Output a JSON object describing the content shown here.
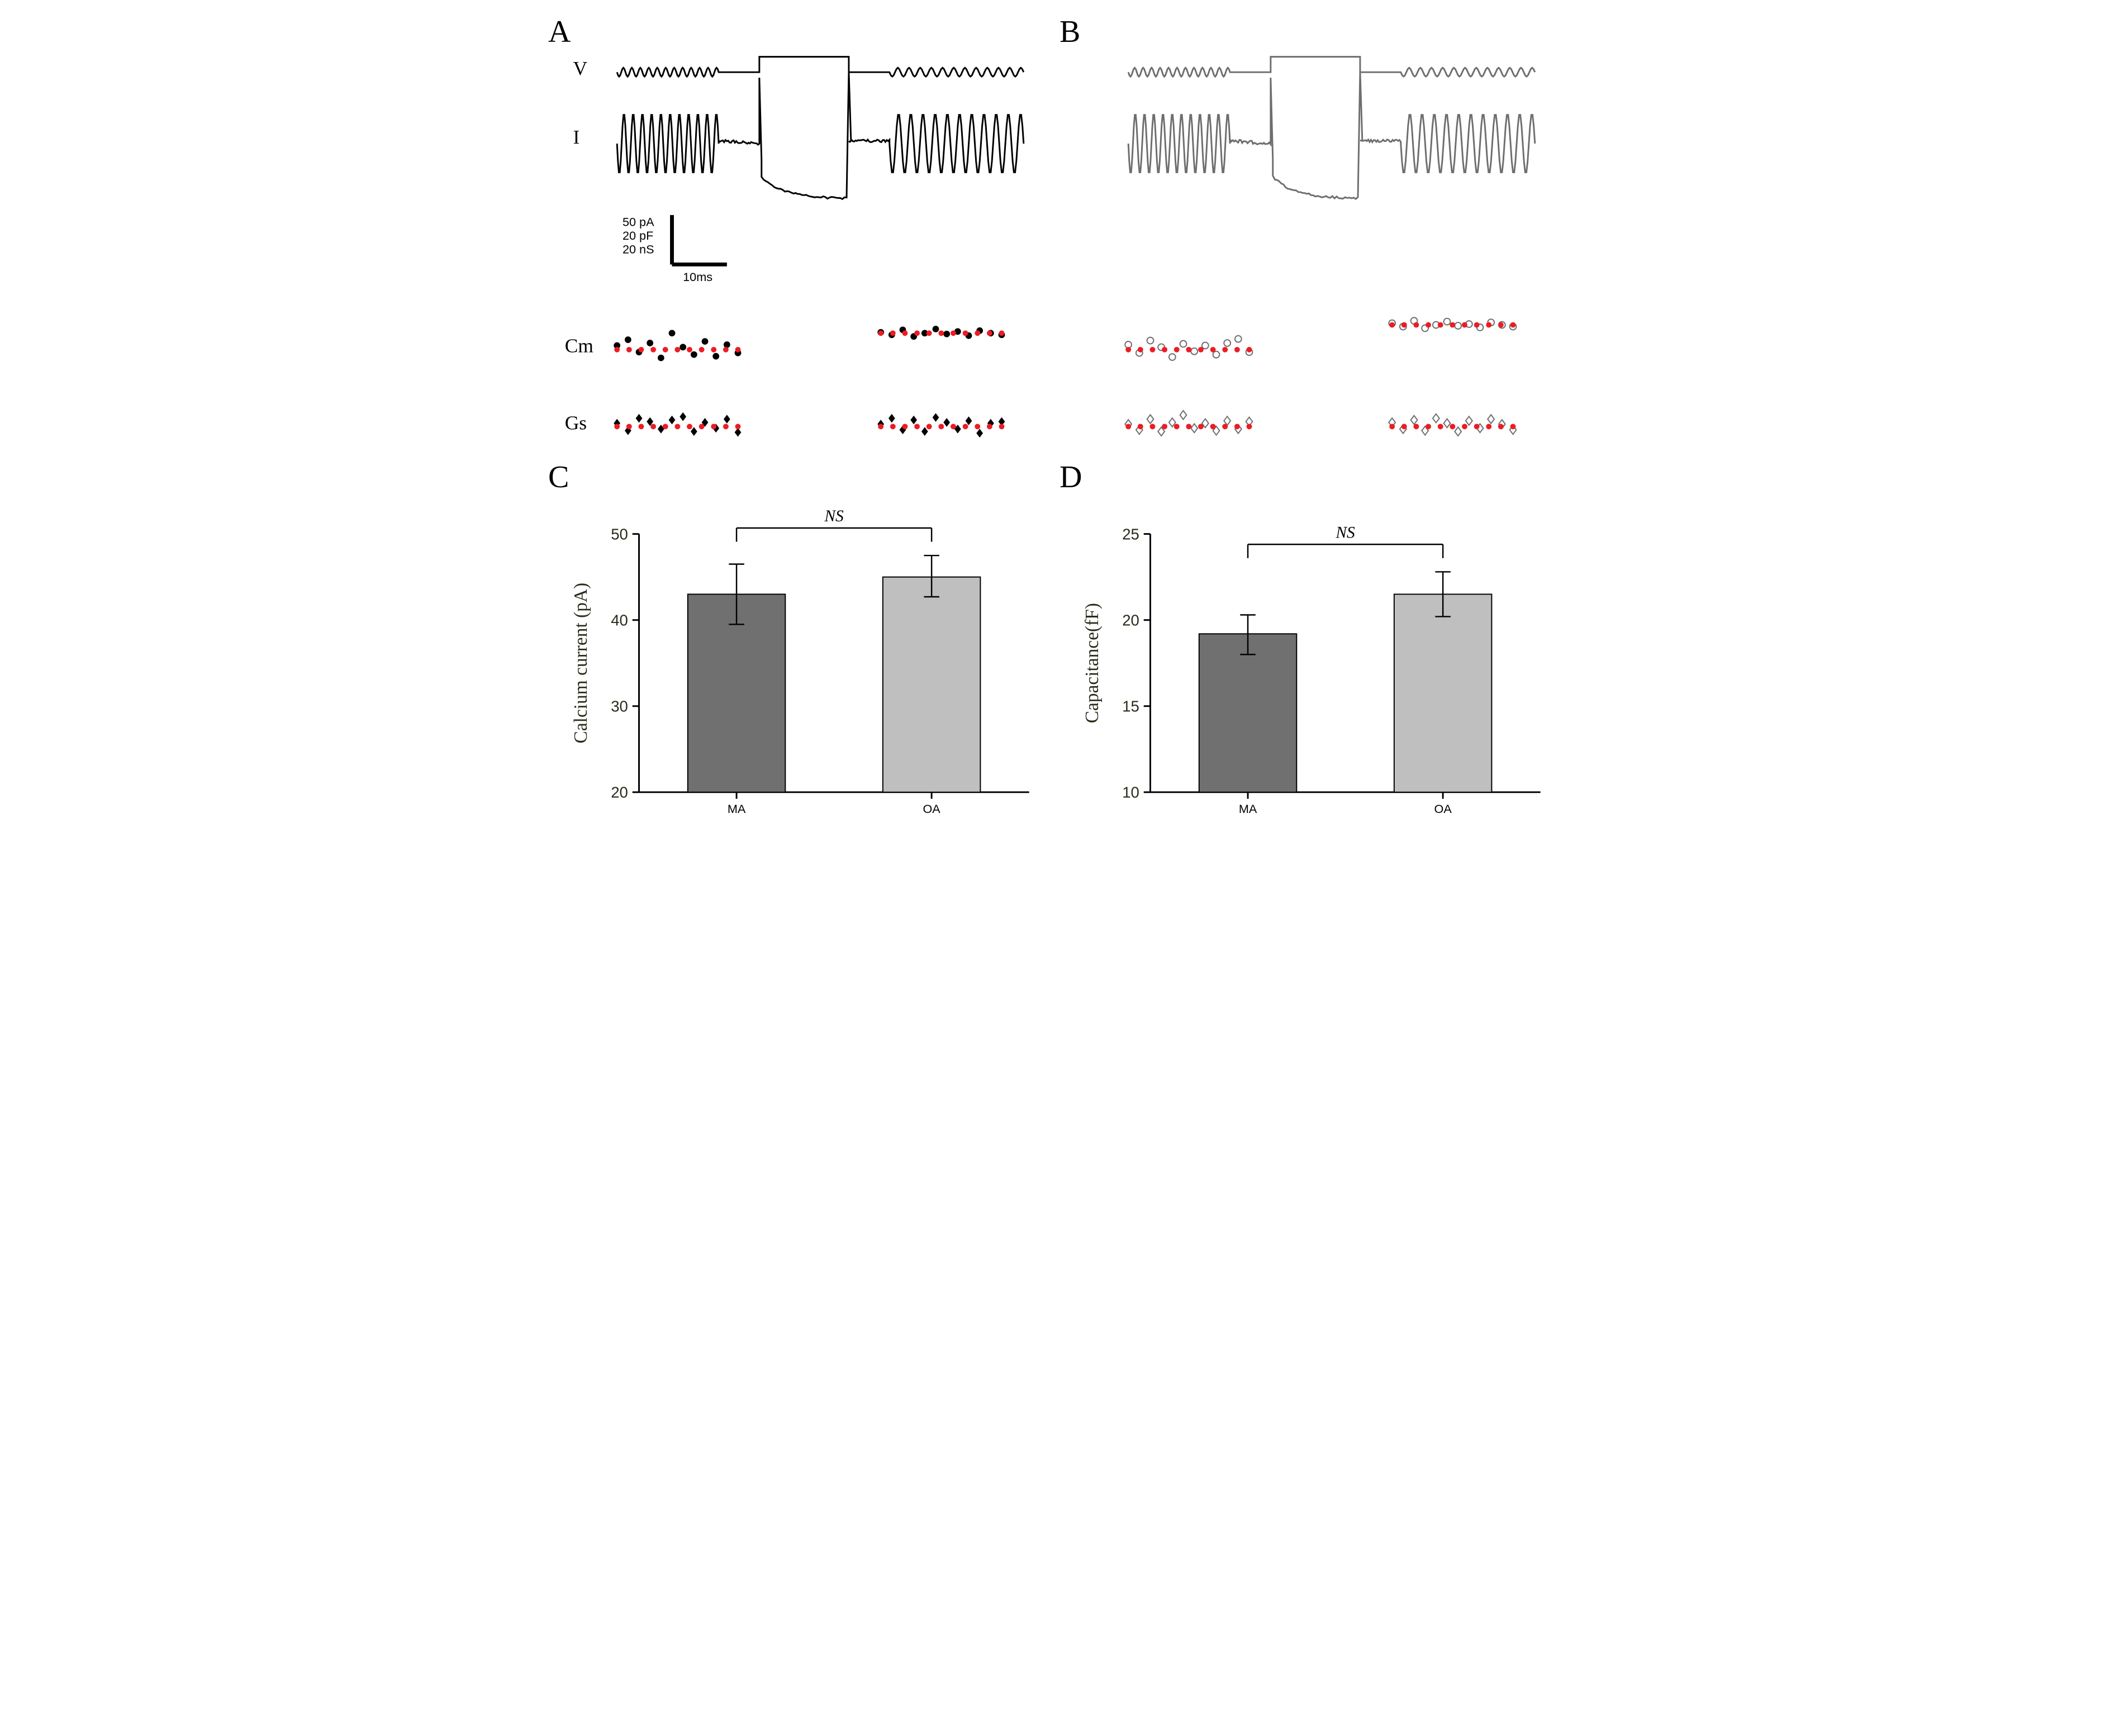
{
  "panels": {
    "A": "A",
    "B": "B",
    "C": "C",
    "D": "D"
  },
  "trace_labels": {
    "V": "V",
    "I": "I",
    "Cm": "Cm",
    "Gs": "Gs"
  },
  "scalebar": {
    "pA": "50 pA",
    "pF": "20 pF",
    "nS": "20 nS",
    "time": "10ms"
  },
  "colors": {
    "panelA_trace": "#000000",
    "panelB_trace": "#6e6e6e",
    "baseline_dot": "#ed1c24",
    "bar_MA_face": "#707070",
    "bar_OA_face": "#bfbfbf",
    "bar_stroke": "#000000",
    "axis_text": "#2a2a1a",
    "ns_text": "#000000"
  },
  "A": {
    "cm_pre": [
      0.5,
      1.2,
      -0.3,
      0.8,
      -1.0,
      2.0,
      0.3,
      -0.6,
      1.0,
      -0.8,
      0.6,
      -0.4
    ],
    "cm_post": [
      2.1,
      1.8,
      2.4,
      1.6,
      2.0,
      2.5,
      1.9,
      2.2,
      1.7,
      2.3,
      2.0,
      1.8
    ],
    "cm_post_baseline": 2.0,
    "gs_pre": [
      0.4,
      -0.5,
      1.0,
      0.6,
      -0.3,
      0.8,
      1.2,
      -0.6,
      0.5,
      -0.2,
      0.9,
      -0.7
    ],
    "gs_post": [
      0.3,
      1.0,
      -0.4,
      0.8,
      -0.6,
      1.1,
      0.5,
      -0.3,
      0.7,
      -0.8,
      0.4,
      0.6
    ],
    "marker_cm": "circle-filled",
    "marker_gs": "diamond-filled"
  },
  "B": {
    "cm_pre": [
      0.6,
      -0.4,
      1.1,
      0.3,
      -0.9,
      0.7,
      -0.2,
      0.5,
      -0.6,
      0.8,
      1.3,
      -0.3
    ],
    "cm_post": [
      3.2,
      2.8,
      3.5,
      2.6,
      3.0,
      3.4,
      2.9,
      3.1,
      2.7,
      3.3,
      3.0,
      2.8
    ],
    "cm_post_baseline": 3.1,
    "gs_pre": [
      0.3,
      -0.4,
      0.9,
      -0.6,
      0.5,
      1.4,
      -0.2,
      0.4,
      -0.5,
      0.7,
      -0.3,
      0.6
    ],
    "gs_post": [
      0.5,
      -0.3,
      0.8,
      -0.5,
      1.0,
      0.4,
      -0.6,
      0.7,
      -0.2,
      0.9,
      0.3,
      -0.4
    ],
    "marker_cm": "circle-open",
    "marker_gs": "diamond-open"
  },
  "chartC": {
    "type": "bar",
    "ylabel": "Calcium current (pA)",
    "categories": [
      "MA",
      "OA"
    ],
    "values": [
      43.0,
      45.0
    ],
    "err_lo": [
      3.5,
      2.3
    ],
    "err_hi": [
      3.5,
      2.5
    ],
    "bar_colors": [
      "#707070",
      "#bfbfbf"
    ],
    "ylim": [
      20,
      50
    ],
    "yticks": [
      20,
      30,
      40,
      50
    ],
    "bar_width": 0.5,
    "ns_label": "NS",
    "ns_italic": true,
    "axis_linewidth": 3,
    "ylabel_fontsize": 34,
    "tick_fontsize": 28,
    "cat_fontsize": 22,
    "ns_fontsize": 30
  },
  "chartD": {
    "type": "bar",
    "ylabel": "Capacitance(fF)",
    "categories": [
      "MA",
      "OA"
    ],
    "values": [
      19.2,
      21.5
    ],
    "err_lo": [
      1.2,
      1.3
    ],
    "err_hi": [
      1.1,
      1.3
    ],
    "bar_colors": [
      "#707070",
      "#bfbfbf"
    ],
    "ylim": [
      10,
      25
    ],
    "yticks": [
      10,
      15,
      20,
      25
    ],
    "bar_width": 0.5,
    "ns_label": "NS",
    "ns_italic": true,
    "axis_linewidth": 3,
    "ylabel_fontsize": 34,
    "tick_fontsize": 28,
    "cat_fontsize": 22,
    "ns_fontsize": 30
  }
}
